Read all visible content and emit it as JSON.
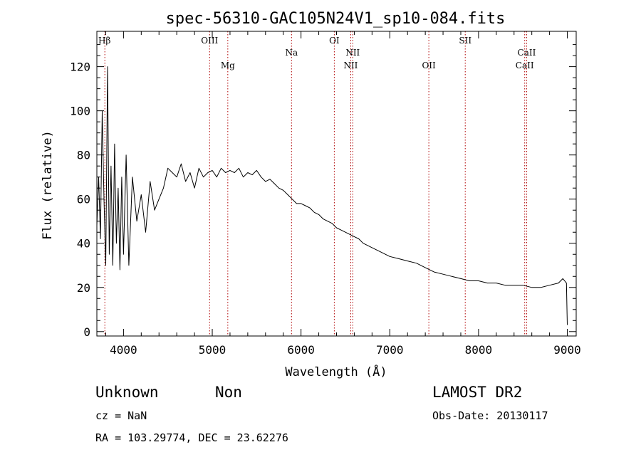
{
  "chart_data": {
    "type": "line",
    "title": "spec-56310-GAC105N24V1_sp10-084.fits",
    "xlabel": "Wavelength (Å)",
    "ylabel": "Flux (relative)",
    "xlim": [
      3700,
      9100
    ],
    "ylim": [
      -2,
      136
    ],
    "x_ticks": [
      4000,
      5000,
      6000,
      7000,
      8000,
      9000
    ],
    "x_tick_labels": [
      "4000",
      "5000",
      "6000",
      "7000",
      "8000",
      "9000"
    ],
    "y_ticks": [
      0,
      20,
      40,
      60,
      80,
      100,
      120
    ],
    "y_tick_labels": [
      "0",
      "20",
      "40",
      "60",
      "80",
      "100",
      "120"
    ],
    "grid": false,
    "series": [
      {
        "x": [
          3700,
          3720,
          3740,
          3760,
          3780,
          3800,
          3820,
          3840,
          3860,
          3880,
          3900,
          3920,
          3940,
          3960,
          3980,
          4000,
          4030,
          4060,
          4100,
          4150,
          4200,
          4250,
          4300,
          4350,
          4400,
          4450,
          4500,
          4550,
          4600,
          4650,
          4700,
          4750,
          4800,
          4850,
          4900,
          4950,
          5000,
          5050,
          5100,
          5150,
          5200,
          5250,
          5300,
          5350,
          5400,
          5450,
          5500,
          5550,
          5600,
          5650,
          5700,
          5750,
          5800,
          5850,
          5900,
          5950,
          6000,
          6050,
          6100,
          6150,
          6200,
          6250,
          6300,
          6350,
          6400,
          6450,
          6500,
          6550,
          6600,
          6650,
          6700,
          6800,
          6900,
          7000,
          7100,
          7200,
          7300,
          7400,
          7500,
          7600,
          7700,
          7800,
          7900,
          8000,
          8100,
          8200,
          8300,
          8400,
          8500,
          8600,
          8700,
          8800,
          8900,
          8950,
          8990,
          9000
        ],
        "y": [
          48,
          70,
          42,
          100,
          60,
          30,
          120,
          35,
          75,
          30,
          85,
          40,
          65,
          28,
          70,
          35,
          80,
          30,
          70,
          50,
          62,
          45,
          68,
          55,
          60,
          65,
          74,
          72,
          70,
          76,
          68,
          72,
          65,
          74,
          70,
          72,
          73,
          70,
          74,
          72,
          73,
          72,
          74,
          70,
          72,
          71,
          73,
          70,
          68,
          69,
          67,
          65,
          64,
          62,
          60,
          58,
          58,
          57,
          56,
          54,
          53,
          51,
          50,
          49,
          47,
          46,
          45,
          44,
          43,
          42,
          40,
          38,
          36,
          34,
          33,
          32,
          31,
          29,
          27,
          26,
          25,
          24,
          23,
          23,
          22,
          22,
          21,
          21,
          21,
          20,
          20,
          21,
          22,
          24,
          22,
          3
        ]
      }
    ],
    "spectral_lines": [
      {
        "label": "Hβ",
        "wavelength": 3790,
        "row": "top"
      },
      {
        "label": "OIII",
        "wavelength": 4970,
        "row": "top"
      },
      {
        "label": "Mg",
        "wavelength": 5175,
        "row": "low"
      },
      {
        "label": "Na",
        "wavelength": 5893,
        "row": "mid"
      },
      {
        "label": "OI",
        "wavelength": 6375,
        "row": "top"
      },
      {
        "label": "NII",
        "wavelength": 6583,
        "row": "mid"
      },
      {
        "label": "NII",
        "wavelength": 6560,
        "row": "low"
      },
      {
        "label": "OII",
        "wavelength": 7440,
        "row": "low"
      },
      {
        "label": "SII",
        "wavelength": 7850,
        "row": "top"
      },
      {
        "label": "CaII",
        "wavelength": 8542,
        "row": "mid"
      },
      {
        "label": "CaII",
        "wavelength": 8520,
        "row": "low"
      }
    ]
  },
  "info": {
    "object_class": "Unknown",
    "object_subclass": "Non",
    "survey": "LAMOST DR2",
    "redshift": "cz = NaN",
    "obs_date": "Obs-Date: 20130117",
    "coordinates": "RA = 103.29774, DEC =  23.62276"
  }
}
